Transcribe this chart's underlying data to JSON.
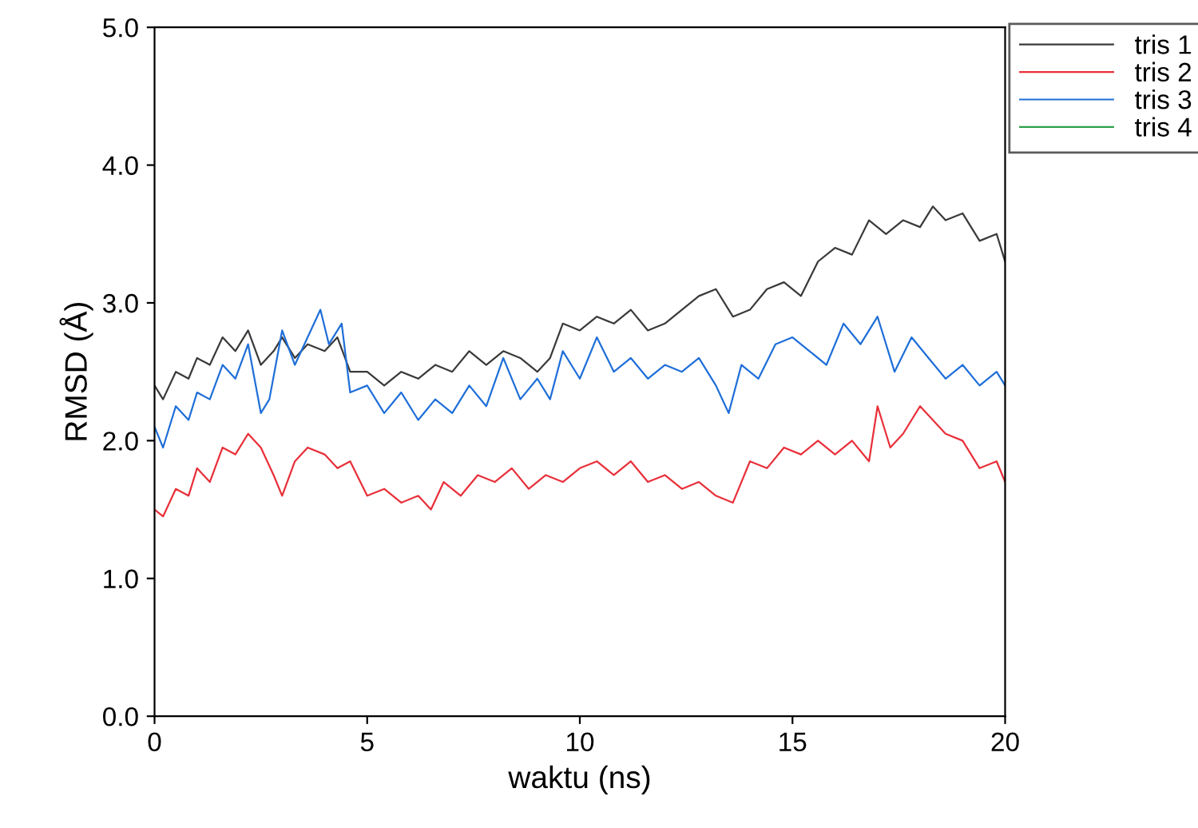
{
  "chart_data": {
    "type": "line",
    "xlabel": "waktu (ns)",
    "ylabel": "RMSD (Å)",
    "xlim": [
      0,
      20
    ],
    "xticks": [
      0,
      5,
      10,
      15,
      20
    ],
    "ylim": [
      0,
      5
    ],
    "yticks": [
      {
        "value": 0,
        "label": "0.0"
      },
      {
        "value": 1,
        "label": "1.0"
      },
      {
        "value": 2,
        "label": "2.0"
      },
      {
        "value": 3,
        "label": "3.0"
      },
      {
        "value": 4,
        "label": "4.0"
      },
      {
        "value": 5,
        "label": "5.0"
      }
    ],
    "grid": false,
    "legend": "top right",
    "line_style": "solid",
    "marker": "none",
    "series": [
      {
        "name": "tris 1",
        "color": "#3a3a3a",
        "x": [
          0,
          0.2,
          0.5,
          0.8,
          1.0,
          1.3,
          1.6,
          1.9,
          2.2,
          2.5,
          2.8,
          3.0,
          3.3,
          3.6,
          4.0,
          4.3,
          4.6,
          5.0,
          5.4,
          5.8,
          6.2,
          6.6,
          7.0,
          7.4,
          7.8,
          8.2,
          8.6,
          9.0,
          9.3,
          9.6,
          10.0,
          10.4,
          10.8,
          11.2,
          11.6,
          12.0,
          12.4,
          12.8,
          13.2,
          13.6,
          14.0,
          14.4,
          14.8,
          15.2,
          15.6,
          16.0,
          16.4,
          16.8,
          17.2,
          17.6,
          18.0,
          18.3,
          18.6,
          19.0,
          19.4,
          19.8,
          20.0
        ],
        "values": [
          2.4,
          2.3,
          2.5,
          2.45,
          2.6,
          2.55,
          2.75,
          2.65,
          2.8,
          2.55,
          2.65,
          2.75,
          2.6,
          2.7,
          2.65,
          2.75,
          2.5,
          2.5,
          2.4,
          2.5,
          2.45,
          2.55,
          2.5,
          2.65,
          2.55,
          2.65,
          2.6,
          2.5,
          2.6,
          2.85,
          2.8,
          2.9,
          2.85,
          2.95,
          2.8,
          2.85,
          2.95,
          3.05,
          3.1,
          2.9,
          2.95,
          3.1,
          3.15,
          3.05,
          3.3,
          3.4,
          3.35,
          3.6,
          3.5,
          3.6,
          3.55,
          3.7,
          3.6,
          3.65,
          3.45,
          3.5,
          3.3
        ]
      },
      {
        "name": "tris 2",
        "color": "#e8303a",
        "x": [
          0,
          0.2,
          0.5,
          0.8,
          1.0,
          1.3,
          1.6,
          1.9,
          2.2,
          2.5,
          2.8,
          3.0,
          3.3,
          3.6,
          4.0,
          4.3,
          4.6,
          5.0,
          5.4,
          5.8,
          6.2,
          6.5,
          6.8,
          7.2,
          7.6,
          8.0,
          8.4,
          8.8,
          9.2,
          9.6,
          10.0,
          10.4,
          10.8,
          11.2,
          11.6,
          12.0,
          12.4,
          12.8,
          13.2,
          13.6,
          14.0,
          14.4,
          14.8,
          15.2,
          15.6,
          16.0,
          16.4,
          16.8,
          17.0,
          17.3,
          17.6,
          18.0,
          18.3,
          18.6,
          19.0,
          19.4,
          19.8,
          20.0
        ],
        "values": [
          1.5,
          1.45,
          1.65,
          1.6,
          1.8,
          1.7,
          1.95,
          1.9,
          2.05,
          1.95,
          1.75,
          1.6,
          1.85,
          1.95,
          1.9,
          1.8,
          1.85,
          1.6,
          1.65,
          1.55,
          1.6,
          1.5,
          1.7,
          1.6,
          1.75,
          1.7,
          1.8,
          1.65,
          1.75,
          1.7,
          1.8,
          1.85,
          1.75,
          1.85,
          1.7,
          1.75,
          1.65,
          1.7,
          1.6,
          1.55,
          1.85,
          1.8,
          1.95,
          1.9,
          2.0,
          1.9,
          2.0,
          1.85,
          2.25,
          1.95,
          2.05,
          2.25,
          2.15,
          2.05,
          2.0,
          1.8,
          1.85,
          1.7
        ]
      },
      {
        "name": "tris 3",
        "color": "#1f6fd8",
        "x": [
          0,
          0.2,
          0.5,
          0.8,
          1.0,
          1.3,
          1.6,
          1.9,
          2.2,
          2.5,
          2.7,
          3.0,
          3.3,
          3.6,
          3.9,
          4.1,
          4.4,
          4.6,
          5.0,
          5.4,
          5.8,
          6.2,
          6.6,
          7.0,
          7.4,
          7.8,
          8.2,
          8.6,
          9.0,
          9.3,
          9.6,
          10.0,
          10.4,
          10.8,
          11.2,
          11.6,
          12.0,
          12.4,
          12.8,
          13.2,
          13.5,
          13.8,
          14.2,
          14.6,
          15.0,
          15.4,
          15.8,
          16.2,
          16.6,
          17.0,
          17.4,
          17.8,
          18.2,
          18.6,
          19.0,
          19.4,
          19.8,
          20.0
        ],
        "values": [
          2.1,
          1.95,
          2.25,
          2.15,
          2.35,
          2.3,
          2.55,
          2.45,
          2.7,
          2.2,
          2.3,
          2.8,
          2.55,
          2.75,
          2.95,
          2.7,
          2.85,
          2.35,
          2.4,
          2.2,
          2.35,
          2.15,
          2.3,
          2.2,
          2.4,
          2.25,
          2.6,
          2.3,
          2.45,
          2.3,
          2.65,
          2.45,
          2.75,
          2.5,
          2.6,
          2.45,
          2.55,
          2.5,
          2.6,
          2.4,
          2.2,
          2.55,
          2.45,
          2.7,
          2.75,
          2.65,
          2.55,
          2.85,
          2.7,
          2.9,
          2.5,
          2.75,
          2.6,
          2.45,
          2.55,
          2.4,
          2.5,
          2.4
        ]
      },
      {
        "name": "tris 4",
        "color": "#2ca04a"
      }
    ]
  }
}
